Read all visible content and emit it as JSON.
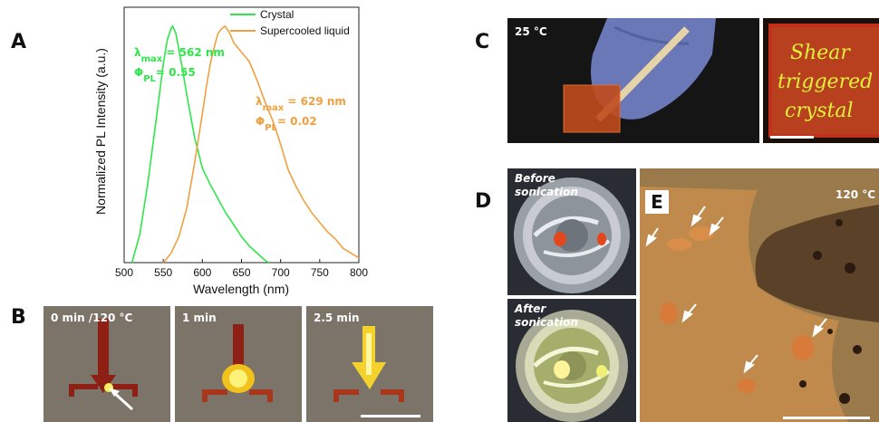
{
  "panels": {
    "a": "A",
    "b": "B",
    "c": "C",
    "d": "D",
    "e": "E"
  },
  "panel_b": {
    "labels": [
      "0 min /120 °C",
      "1 min",
      "2.5 min"
    ]
  },
  "panel_c": {
    "temperature": "25 °C",
    "handwriting": [
      "Shear",
      "triggered",
      "crystal"
    ]
  },
  "panel_d": {
    "before": [
      "Before",
      "sonication"
    ],
    "after": [
      "After",
      "sonication"
    ]
  },
  "panel_e": {
    "temperature": "120 °C"
  },
  "colors": {
    "crystal": "#2ee64a",
    "supercooled": "#f0a040"
  },
  "chart_data": {
    "type": "line",
    "xlabel": "Wavelength (nm)",
    "ylabel": "Normalized PL Intensity (a.u.)",
    "xlim": [
      500,
      800
    ],
    "ylim": [
      0,
      1.08
    ],
    "xticks": [
      500,
      550,
      600,
      650,
      700,
      750,
      800
    ],
    "legend_position": "top-right",
    "series": [
      {
        "name": "Crystal",
        "color": "#2ee64a",
        "x": [
          510,
          520,
          530,
          540,
          550,
          555,
          560,
          562,
          566,
          570,
          575,
          580,
          590,
          600,
          610,
          620,
          630,
          640,
          650,
          660,
          670,
          680,
          685
        ],
        "y": [
          0.0,
          0.12,
          0.33,
          0.58,
          0.84,
          0.94,
          0.99,
          1.0,
          0.97,
          0.9,
          0.81,
          0.71,
          0.53,
          0.4,
          0.33,
          0.27,
          0.21,
          0.16,
          0.11,
          0.07,
          0.04,
          0.01,
          0.0
        ]
      },
      {
        "name": "Supercooled liquid",
        "color": "#f0a040",
        "x": [
          550,
          560,
          570,
          580,
          590,
          600,
          605,
          610,
          615,
          620,
          625,
          629,
          635,
          640,
          645,
          650,
          660,
          670,
          680,
          690,
          700,
          710,
          720,
          730,
          740,
          750,
          760,
          770,
          780,
          790,
          800
        ],
        "y": [
          0.0,
          0.04,
          0.11,
          0.23,
          0.42,
          0.63,
          0.74,
          0.84,
          0.91,
          0.97,
          0.99,
          1.0,
          0.97,
          0.93,
          0.91,
          0.89,
          0.85,
          0.77,
          0.68,
          0.6,
          0.5,
          0.39,
          0.32,
          0.26,
          0.21,
          0.17,
          0.13,
          0.1,
          0.06,
          0.04,
          0.02
        ]
      }
    ],
    "annotations": [
      {
        "series": "Crystal",
        "lines": [
          "λmax = 562 nm",
          "ΦPL= 0.55"
        ]
      },
      {
        "series": "Supercooled liquid",
        "lines": [
          "λmax = 629 nm",
          "ΦPL= 0.02"
        ]
      }
    ]
  }
}
